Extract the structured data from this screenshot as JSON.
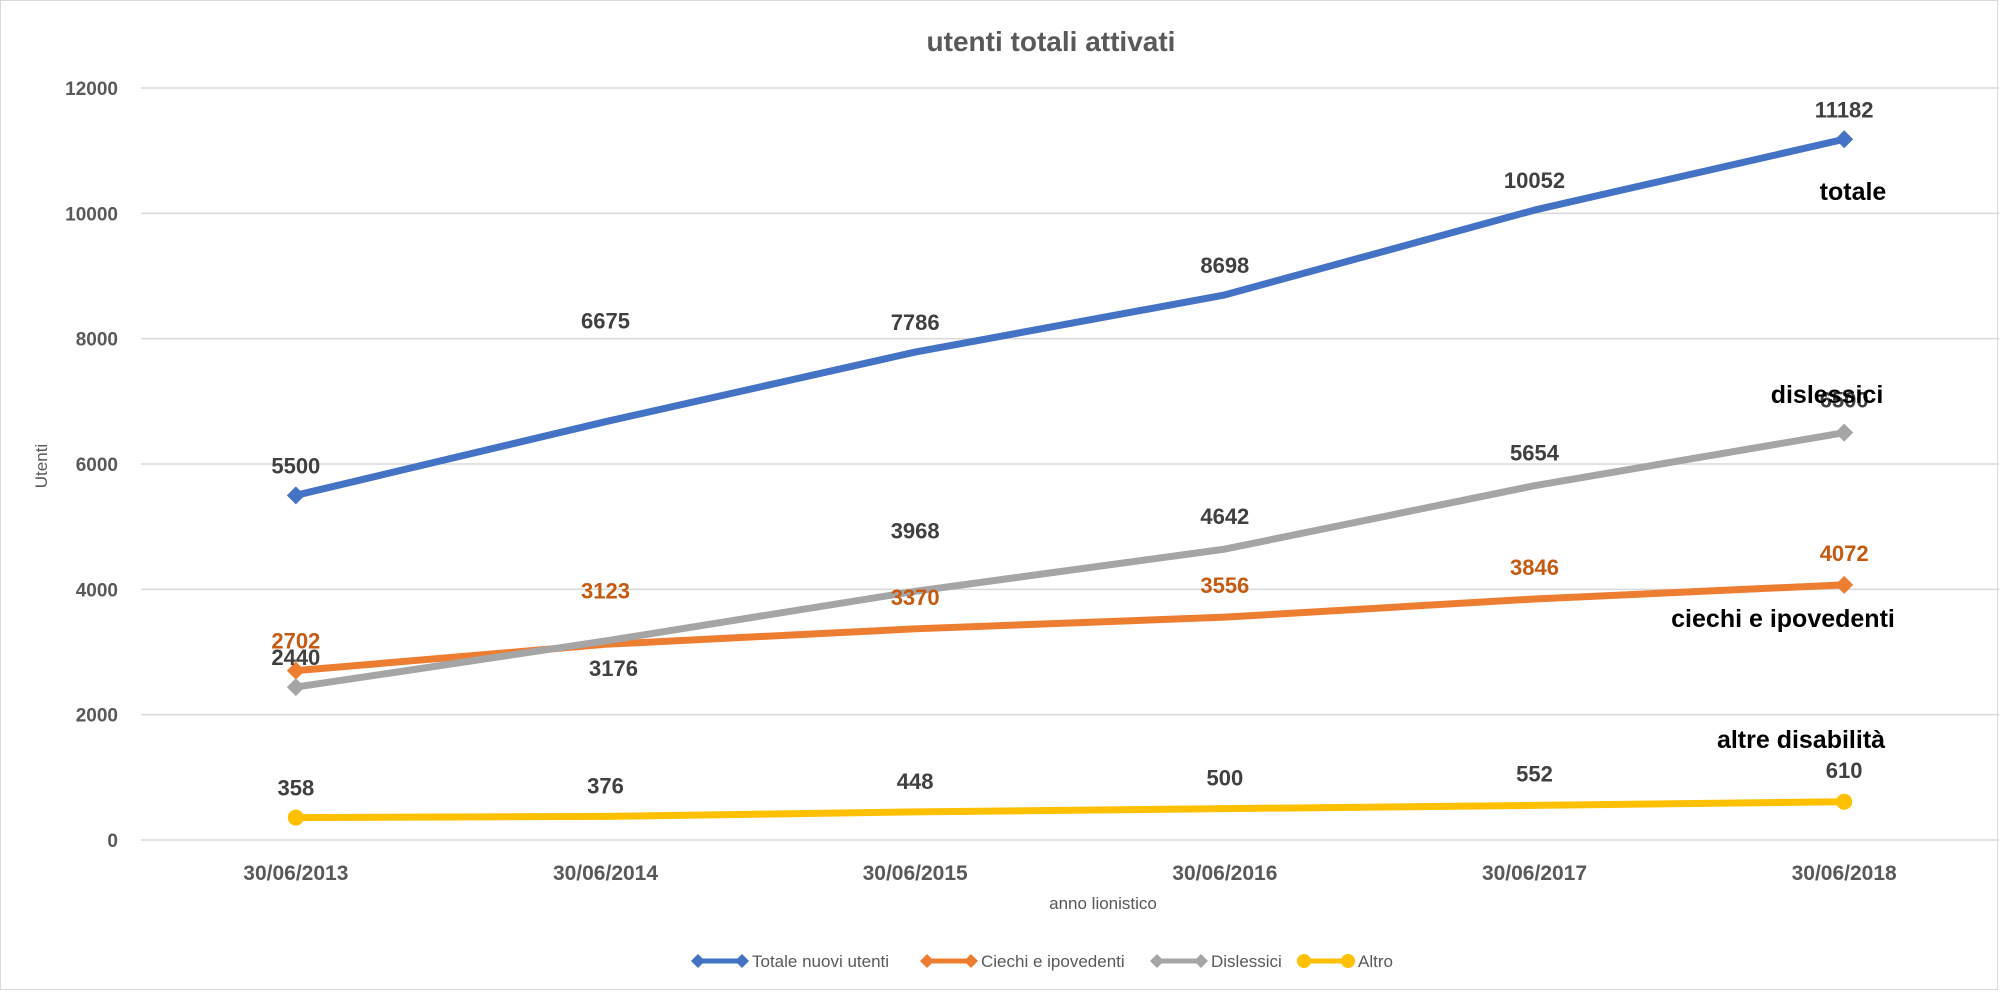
{
  "chart_data": {
    "type": "line",
    "title": "utenti totali attivati",
    "xlabel": "anno lionistico",
    "ylabel": "Utenti",
    "categories": [
      "30/06/2013",
      "30/06/2014",
      "30/06/2015",
      "30/06/2016",
      "30/06/2017",
      "30/06/2018"
    ],
    "ylim": [
      0,
      12000
    ],
    "yticks": [
      0,
      2000,
      4000,
      6000,
      8000,
      10000,
      12000
    ],
    "grid": true,
    "legend_position": "bottom",
    "series": [
      {
        "name": "Totale nuovi utenti",
        "values": [
          5500,
          6675,
          7786,
          8698,
          10052,
          11182
        ],
        "color": "#4472C4",
        "marker": "diamond",
        "label_color": "#404040",
        "annotation": "totale"
      },
      {
        "name": "Ciechi e ipovedenti",
        "values": [
          2702,
          3123,
          3370,
          3556,
          3846,
          4072
        ],
        "color": "#ED7D31",
        "marker": "diamond",
        "label_color": "#C55A11",
        "annotation": "ciechi e ipovedenti"
      },
      {
        "name": "Dislessici",
        "values": [
          2440,
          3176,
          3968,
          4642,
          5654,
          6500
        ],
        "color": "#A5A5A5",
        "marker": "diamond",
        "label_color": "#404040",
        "annotation": "dislessici"
      },
      {
        "name": "Altro",
        "values": [
          358,
          376,
          448,
          500,
          552,
          610
        ],
        "color": "#FFC000",
        "marker": "circle",
        "label_color": "#404040",
        "annotation": "altre disabilità"
      }
    ]
  }
}
